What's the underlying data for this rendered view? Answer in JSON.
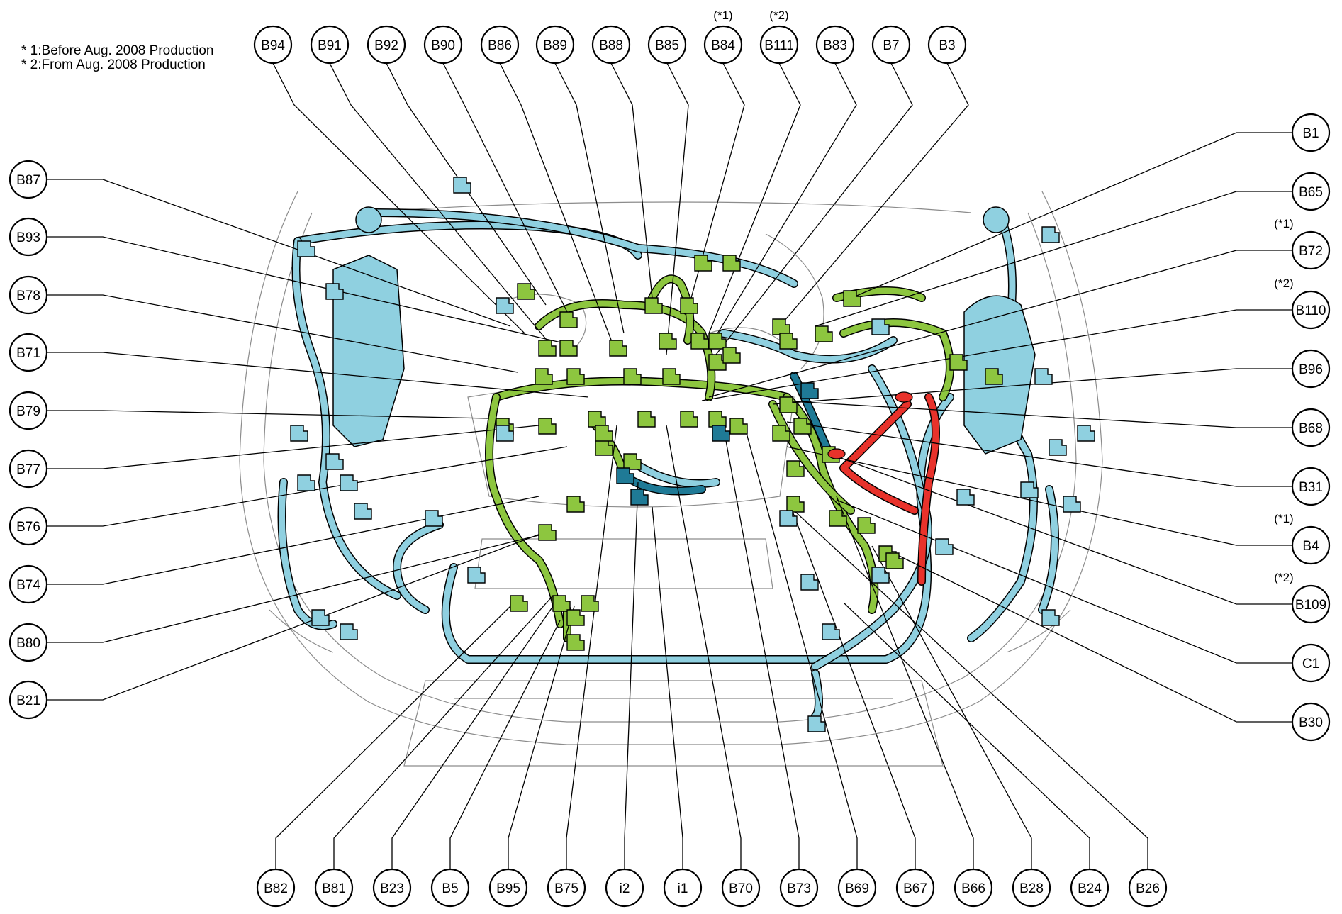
{
  "notes": [
    "* 1:Before Aug. 2008 Production",
    "* 2:From Aug. 2008 Production"
  ],
  "colors": {
    "harness_blue": "#8fd0e0",
    "harness_green": "#8dc63f",
    "harness_dark_teal": "#1f7a96",
    "harness_red": "#e8322b",
    "outline": "#000000"
  },
  "callouts": {
    "top": [
      {
        "label": "B94"
      },
      {
        "label": "B91"
      },
      {
        "label": "B92"
      },
      {
        "label": "B90"
      },
      {
        "label": "B86"
      },
      {
        "label": "B89"
      },
      {
        "label": "B88"
      },
      {
        "label": "B85"
      },
      {
        "label": "B84",
        "note": "(*1)"
      },
      {
        "label": "B111",
        "note": "(*2)"
      },
      {
        "label": "B83"
      },
      {
        "label": "B7"
      },
      {
        "label": "B3"
      }
    ],
    "left": [
      {
        "label": "B87"
      },
      {
        "label": "B93"
      },
      {
        "label": "B78"
      },
      {
        "label": "B71"
      },
      {
        "label": "B79"
      },
      {
        "label": "B77"
      },
      {
        "label": "B76"
      },
      {
        "label": "B74"
      },
      {
        "label": "B80"
      },
      {
        "label": "B21"
      }
    ],
    "right": [
      {
        "label": "B1"
      },
      {
        "label": "B65"
      },
      {
        "label": "B72",
        "note": "(*1)"
      },
      {
        "label": "B110",
        "note": "(*2)"
      },
      {
        "label": "B96"
      },
      {
        "label": "B68"
      },
      {
        "label": "B31"
      },
      {
        "label": "B4",
        "note": "(*1)"
      },
      {
        "label": "B109",
        "note": "(*2)"
      },
      {
        "label": "C1"
      },
      {
        "label": "B30"
      }
    ],
    "bottom": [
      {
        "label": "B82"
      },
      {
        "label": "B81"
      },
      {
        "label": "B23"
      },
      {
        "label": "B5"
      },
      {
        "label": "B95"
      },
      {
        "label": "B75"
      },
      {
        "label": "i2"
      },
      {
        "label": "i1"
      },
      {
        "label": "B70"
      },
      {
        "label": "B73"
      },
      {
        "label": "B69"
      },
      {
        "label": "B67"
      },
      {
        "label": "B66"
      },
      {
        "label": "B28"
      },
      {
        "label": "B24"
      },
      {
        "label": "B26"
      }
    ]
  }
}
